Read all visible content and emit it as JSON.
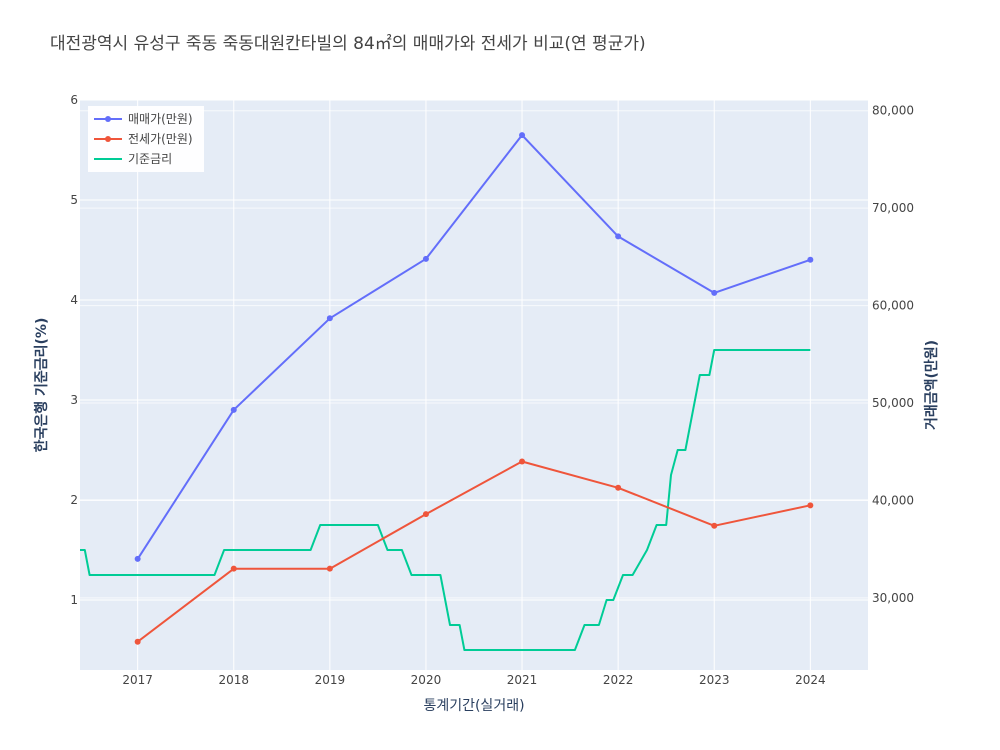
{
  "chart_data": {
    "type": "line",
    "title": "대전광역시 유성구 죽동 죽동대원칸타빌의 84㎡의 매매가와 전세가 비교(연 평균가)",
    "xlabel": "통계기간(실거래)",
    "ylabel_left": "한국은행 기준금리(%)",
    "ylabel_right": "거래금액(만원)",
    "x_range": [
      2016.4,
      2024.6
    ],
    "x_ticks": [
      2017,
      2018,
      2019,
      2020,
      2021,
      2022,
      2023,
      2024
    ],
    "y_left_range": [
      0.3,
      6.0
    ],
    "y_left_ticks": [
      1,
      2,
      3,
      4,
      5,
      6
    ],
    "y_right_range": [
      22600,
      81100
    ],
    "y_right_ticks": [
      30000,
      40000,
      50000,
      60000,
      70000,
      80000
    ],
    "y_right_tick_labels": [
      "30,000",
      "40,000",
      "50,000",
      "60,000",
      "70,000",
      "80,000"
    ],
    "grid": true,
    "legend_position": "top-left",
    "series": [
      {
        "name": "매매가(만원)",
        "axis": "right",
        "color": "#636efa",
        "markers": true,
        "x": [
          2017,
          2018,
          2019,
          2020,
          2021,
          2022,
          2023,
          2024
        ],
        "y": [
          34000,
          49300,
          58700,
          64800,
          77500,
          67100,
          61300,
          64700
        ]
      },
      {
        "name": "전세가(만원)",
        "axis": "right",
        "color": "#ef553b",
        "markers": true,
        "x": [
          2017,
          2018,
          2019,
          2020,
          2021,
          2022,
          2023,
          2024
        ],
        "y": [
          25500,
          33000,
          33000,
          38600,
          44000,
          41300,
          37400,
          39500
        ]
      },
      {
        "name": "기준금리",
        "axis": "left",
        "color": "#00cc96",
        "markers": false,
        "shape": "step",
        "x": [
          2016.4,
          2016.45,
          2016.5,
          2017.8,
          2017.9,
          2018.8,
          2018.9,
          2019.5,
          2019.6,
          2019.75,
          2019.85,
          2020.15,
          2020.25,
          2020.35,
          2020.4,
          2021.55,
          2021.65,
          2021.8,
          2021.88,
          2021.95,
          2022.05,
          2022.15,
          2022.3,
          2022.4,
          2022.5,
          2022.55,
          2022.62,
          2022.7,
          2022.8,
          2022.85,
          2022.95,
          2023.0,
          2023.08,
          2024.0
        ],
        "y": [
          1.5,
          1.5,
          1.25,
          1.25,
          1.5,
          1.5,
          1.75,
          1.75,
          1.5,
          1.5,
          1.25,
          1.25,
          0.75,
          0.75,
          0.5,
          0.5,
          0.75,
          0.75,
          1.0,
          1.0,
          1.25,
          1.25,
          1.5,
          1.75,
          1.75,
          2.25,
          2.5,
          2.5,
          3.0,
          3.25,
          3.25,
          3.5,
          3.5,
          3.5
        ]
      }
    ]
  }
}
